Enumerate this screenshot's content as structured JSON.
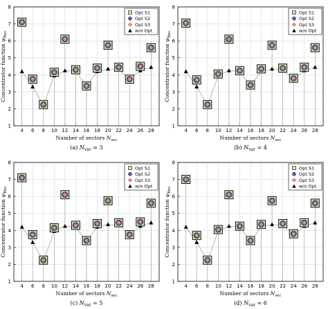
{
  "chart_data": [
    {
      "type": "scatter",
      "caption": "(a) N_var = 3",
      "caption_parts": {
        "prefix": "(a)",
        "symbol": "N",
        "subscript": "var",
        "suffix": "= 3"
      },
      "xlabel": "Number of sectors N_sec",
      "xlabel_parts": {
        "text": "Number of sectors",
        "symbol": "N",
        "subscript": "sec"
      },
      "ylabel": "Concentrator function ψ_Rec",
      "ylabel_parts": {
        "text": "Concentrator function",
        "symbol": "ψ",
        "subscript": "Rec"
      },
      "xlim": [
        2.5,
        29.5
      ],
      "ylim": [
        1,
        8
      ],
      "xticks": [
        "4",
        "6",
        "8",
        "10",
        "12",
        "14",
        "16",
        "18",
        "20",
        "22",
        "24",
        "26",
        "28"
      ],
      "yticks": [
        "1",
        "2",
        "3",
        "4",
        "5",
        "6",
        "7",
        "8"
      ],
      "grid": true,
      "legend_position": "top-right",
      "x": [
        4,
        6,
        8,
        10,
        12,
        14,
        16,
        18,
        20,
        22,
        24,
        26,
        28
      ],
      "series": [
        {
          "name": "Opt S1",
          "marker": "square",
          "values": [
            7.1,
            3.75,
            2.25,
            4.15,
            6.1,
            4.3,
            3.35,
            4.4,
            5.75,
            4.45,
            3.75,
            4.5,
            5.6
          ]
        },
        {
          "name": "Opt S2",
          "marker": "circle",
          "values": [
            7.1,
            3.75,
            2.25,
            4.15,
            6.1,
            4.3,
            3.35,
            4.4,
            5.75,
            4.45,
            3.75,
            4.5,
            5.6
          ]
        },
        {
          "name": "Opt S3",
          "marker": "diamond",
          "values": [
            7.1,
            3.75,
            2.25,
            4.15,
            6.1,
            4.3,
            3.35,
            4.4,
            5.75,
            4.45,
            3.75,
            4.5,
            5.6
          ]
        },
        {
          "name": "w/o Opt",
          "marker": "triangle",
          "values": [
            4.2,
            3.3,
            2.2,
            3.95,
            4.25,
            4.2,
            3.35,
            4.2,
            4.35,
            4.3,
            3.75,
            4.25,
            4.45
          ]
        }
      ]
    },
    {
      "type": "scatter",
      "caption": "(b) N_var = 4",
      "caption_parts": {
        "prefix": "(b)",
        "symbol": "N",
        "subscript": "var",
        "suffix": "= 4"
      },
      "xlabel": "Number of sectors N_sec",
      "xlabel_parts": {
        "text": "Number of sectors",
        "symbol": "N",
        "subscript": "sec"
      },
      "ylabel": "Concentrator function ψ_Rec",
      "ylabel_parts": {
        "text": "Concentrator function",
        "symbol": "ψ",
        "subscript": "Rec"
      },
      "xlim": [
        2.5,
        29.5
      ],
      "ylim": [
        1,
        8
      ],
      "xticks": [
        "4",
        "6",
        "8",
        "10",
        "12",
        "14",
        "16",
        "18",
        "20",
        "22",
        "24",
        "26",
        "28"
      ],
      "yticks": [
        "1",
        "2",
        "3",
        "4",
        "5",
        "6",
        "7",
        "8"
      ],
      "grid": true,
      "legend_position": "top-right",
      "x": [
        4,
        6,
        8,
        10,
        12,
        14,
        16,
        18,
        20,
        22,
        24,
        26,
        28
      ],
      "series": [
        {
          "name": "Opt S1",
          "marker": "square",
          "values": [
            7.05,
            3.7,
            2.25,
            4.05,
            6.1,
            4.25,
            3.4,
            4.35,
            5.75,
            4.4,
            3.8,
            4.45,
            5.6
          ]
        },
        {
          "name": "Opt S2",
          "marker": "circle",
          "values": [
            7.05,
            3.7,
            2.25,
            4.05,
            6.1,
            4.25,
            3.4,
            4.35,
            5.75,
            4.4,
            3.8,
            4.45,
            5.6
          ]
        },
        {
          "name": "Opt S3",
          "marker": "diamond",
          "values": [
            7.05,
            3.7,
            2.25,
            4.05,
            6.1,
            4.25,
            3.4,
            4.35,
            5.75,
            4.4,
            3.8,
            4.45,
            5.6
          ]
        },
        {
          "name": "w/o Opt",
          "marker": "triangle",
          "values": [
            4.2,
            3.3,
            2.2,
            3.95,
            4.25,
            4.2,
            3.35,
            4.2,
            4.35,
            4.3,
            3.75,
            4.25,
            4.45
          ]
        }
      ]
    },
    {
      "type": "scatter",
      "caption": "(c) N_var = 5",
      "caption_parts": {
        "prefix": "(c)",
        "symbol": "N",
        "subscript": "var",
        "suffix": "= 5"
      },
      "xlabel": "Number of sectors N_sec",
      "xlabel_parts": {
        "text": "Number of sectors",
        "symbol": "N",
        "subscript": "sec"
      },
      "ylabel": "Concentrator function ψ_Rec",
      "ylabel_parts": {
        "text": "Concentrator function",
        "symbol": "ψ",
        "subscript": "Rec"
      },
      "xlim": [
        2.5,
        29.5
      ],
      "ylim": [
        1,
        8
      ],
      "xticks": [
        "4",
        "6",
        "8",
        "10",
        "12",
        "14",
        "16",
        "18",
        "20",
        "22",
        "24",
        "26",
        "28"
      ],
      "yticks": [
        "1",
        "2",
        "3",
        "4",
        "5",
        "6",
        "7",
        "8"
      ],
      "grid": true,
      "legend_position": "top-right",
      "x": [
        4,
        6,
        8,
        10,
        12,
        14,
        16,
        18,
        20,
        22,
        24,
        26,
        28
      ],
      "series": [
        {
          "name": "Opt S1",
          "marker": "square",
          "values": [
            7.1,
            3.75,
            2.25,
            4.15,
            6.1,
            4.3,
            3.4,
            4.4,
            5.75,
            4.45,
            3.75,
            4.5,
            5.6
          ]
        },
        {
          "name": "Opt S2",
          "marker": "circle",
          "values": [
            7.1,
            3.75,
            2.25,
            4.15,
            6.1,
            4.3,
            3.4,
            4.4,
            5.75,
            4.45,
            3.75,
            4.5,
            5.6
          ]
        },
        {
          "name": "Opt S3",
          "marker": "diamond",
          "values": [
            7.1,
            3.75,
            2.25,
            4.15,
            6.1,
            4.3,
            3.4,
            4.4,
            5.75,
            4.45,
            3.75,
            4.5,
            5.6
          ]
        },
        {
          "name": "w/o Opt",
          "marker": "triangle",
          "values": [
            4.2,
            3.3,
            2.2,
            3.95,
            4.25,
            4.2,
            3.35,
            4.2,
            4.35,
            4.3,
            3.75,
            4.25,
            4.45
          ]
        }
      ]
    },
    {
      "type": "scatter",
      "caption": "(d) N_var = 6",
      "caption_parts": {
        "prefix": "(d)",
        "symbol": "N",
        "subscript": "var",
        "suffix": "= 6"
      },
      "xlabel": "Number of sectors N_sec",
      "xlabel_parts": {
        "text": "Number of sectors",
        "symbol": "N",
        "subscript": "sec"
      },
      "ylabel": "Concentrator function ψ_Rec",
      "ylabel_parts": {
        "text": "Concentrator function",
        "symbol": "ψ",
        "subscript": "Rec"
      },
      "xlim": [
        2.5,
        29.5
      ],
      "ylim": [
        1,
        8
      ],
      "xticks": [
        "4",
        "6",
        "8",
        "10",
        "12",
        "14",
        "16",
        "18",
        "20",
        "22",
        "24",
        "26",
        "28"
      ],
      "yticks": [
        "1",
        "2",
        "3",
        "4",
        "5",
        "6",
        "7",
        "8"
      ],
      "grid": true,
      "legend_position": "top-right",
      "x": [
        4,
        6,
        8,
        10,
        12,
        14,
        16,
        18,
        20,
        22,
        24,
        26,
        28
      ],
      "series": [
        {
          "name": "Opt S1",
          "marker": "square",
          "values": [
            7.0,
            3.7,
            2.25,
            4.05,
            6.1,
            4.25,
            3.4,
            4.35,
            5.75,
            4.4,
            3.8,
            4.45,
            5.6
          ]
        },
        {
          "name": "Opt S2",
          "marker": "circle",
          "values": [
            7.0,
            3.7,
            2.25,
            4.05,
            6.1,
            4.25,
            3.4,
            4.35,
            5.75,
            4.4,
            3.8,
            4.45,
            5.6
          ]
        },
        {
          "name": "Opt S3",
          "marker": "diamond",
          "values": [
            7.0,
            3.7,
            2.25,
            4.05,
            6.1,
            4.25,
            3.4,
            4.35,
            5.75,
            4.4,
            3.8,
            4.45,
            5.6
          ]
        },
        {
          "name": "w/o Opt",
          "marker": "triangle",
          "values": [
            4.2,
            3.3,
            2.2,
            3.95,
            4.25,
            4.2,
            3.35,
            4.2,
            4.35,
            4.3,
            3.75,
            4.25,
            4.45
          ]
        }
      ]
    }
  ],
  "colors": {
    "s1_fill": "#c8e8a8",
    "s1_stroke": "#000000",
    "s2_fill": "#5a5fb0",
    "s3_fill": "#e89090",
    "triangle": "#000000",
    "grid": "#d9d9d9",
    "stem": "#999999"
  }
}
